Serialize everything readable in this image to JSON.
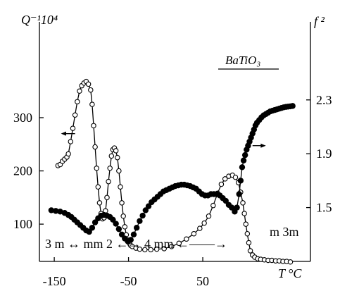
{
  "chart_data": {
    "type": "line",
    "title": "",
    "annotation_label": "BaTiO₃",
    "x_axis": {
      "label": "T °C",
      "range": [
        -170,
        195
      ],
      "ticks": [
        -150,
        -50,
        50
      ],
      "tick_labels": [
        "-150",
        "-50",
        "50"
      ]
    },
    "y_left": {
      "label": "Q⁻¹10⁴",
      "range": [
        30,
        480
      ],
      "ticks": [
        100,
        200,
        300
      ],
      "tick_labels": [
        "100",
        "200",
        "300"
      ]
    },
    "y_right": {
      "label": "f ²",
      "range": [
        1.1,
        2.88
      ],
      "ticks": [
        1.5,
        1.9,
        2.3
      ],
      "tick_labels": [
        "1.5",
        "1.9",
        "2.3"
      ]
    },
    "phase_annotations": {
      "line1": "3 m ↔ mm 2 ←→ 4 mm ←——→",
      "line2": "m 3m"
    },
    "series": [
      {
        "axis": "left",
        "marker": "open-circle",
        "x": [
          -145,
          -142,
          -139,
          -136,
          -133,
          -131,
          -128,
          -125,
          -122,
          -119,
          -116,
          -113,
          -110,
          -107,
          -104,
          -101,
          -99,
          -97,
          -95,
          -93,
          -91,
          -89,
          -87,
          -85,
          -83,
          -81,
          -79,
          -77,
          -75,
          -73,
          -71,
          -69,
          -67,
          -65,
          -63,
          -61,
          -59,
          -57,
          -55,
          -53,
          -51,
          -49,
          -47,
          -45,
          -40,
          -35,
          -28,
          -20,
          -12,
          -2,
          8,
          18,
          28,
          38,
          46,
          52,
          58,
          64,
          70,
          75,
          80,
          85,
          90,
          94,
          98,
          101,
          104,
          106,
          108,
          110,
          112,
          114,
          117,
          120,
          124,
          128,
          133,
          138,
          143,
          148,
          153,
          158,
          163,
          168
        ],
        "y": [
          210,
          212,
          218,
          222,
          226,
          232,
          255,
          280,
          305,
          330,
          350,
          360,
          365,
          368,
          363,
          352,
          325,
          285,
          245,
          205,
          170,
          140,
          120,
          110,
          112,
          125,
          150,
          180,
          205,
          228,
          240,
          243,
          238,
          225,
          200,
          170,
          140,
          115,
          95,
          80,
          70,
          64,
          60,
          58,
          55,
          53,
          52,
          52,
          53,
          54,
          58,
          64,
          72,
          82,
          92,
          102,
          115,
          135,
          158,
          175,
          185,
          190,
          192,
          188,
          178,
          160,
          140,
          120,
          100,
          82,
          65,
          50,
          42,
          38,
          35,
          34,
          33,
          32,
          32,
          31,
          31,
          30,
          30,
          29
        ]
      },
      {
        "axis": "right",
        "marker": "filled-circle",
        "x": [
          -154,
          -148,
          -142,
          -136,
          -131,
          -127,
          -123,
          -119,
          -115,
          -111,
          -107,
          -103,
          -99,
          -95,
          -91,
          -87,
          -83,
          -79,
          -75,
          -71,
          -67,
          -63,
          -59,
          -55,
          -51,
          -47,
          -43,
          -39,
          -35,
          -31,
          -27,
          -23,
          -19,
          -15,
          -11,
          -7,
          -3,
          1,
          5,
          9,
          13,
          17,
          21,
          25,
          29,
          33,
          37,
          41,
          45,
          49,
          53,
          57,
          61,
          65,
          69,
          73,
          77,
          81,
          85,
          89,
          93,
          96,
          99,
          101,
          103,
          105,
          107,
          109,
          111,
          113,
          115,
          117,
          119,
          121,
          123,
          126,
          129,
          132,
          135,
          138,
          141,
          144,
          147,
          150,
          153,
          156,
          159,
          162,
          165,
          168,
          171
        ],
        "y": [
          1.48,
          1.475,
          1.47,
          1.46,
          1.445,
          1.43,
          1.41,
          1.39,
          1.37,
          1.35,
          1.33,
          1.32,
          1.35,
          1.39,
          1.42,
          1.44,
          1.445,
          1.44,
          1.43,
          1.41,
          1.38,
          1.34,
          1.3,
          1.27,
          1.25,
          1.26,
          1.3,
          1.35,
          1.4,
          1.44,
          1.48,
          1.51,
          1.54,
          1.56,
          1.58,
          1.6,
          1.62,
          1.63,
          1.64,
          1.65,
          1.66,
          1.665,
          1.67,
          1.67,
          1.665,
          1.66,
          1.65,
          1.64,
          1.62,
          1.6,
          1.59,
          1.59,
          1.6,
          1.6,
          1.6,
          1.59,
          1.57,
          1.55,
          1.52,
          1.5,
          1.47,
          1.5,
          1.6,
          1.7,
          1.8,
          1.85,
          1.89,
          1.93,
          1.96,
          1.99,
          2.02,
          2.05,
          2.08,
          2.11,
          2.13,
          2.15,
          2.17,
          2.185,
          2.195,
          2.205,
          2.215,
          2.22,
          2.225,
          2.23,
          2.235,
          2.24,
          2.245,
          2.248,
          2.25,
          2.252,
          2.255
        ]
      }
    ]
  }
}
